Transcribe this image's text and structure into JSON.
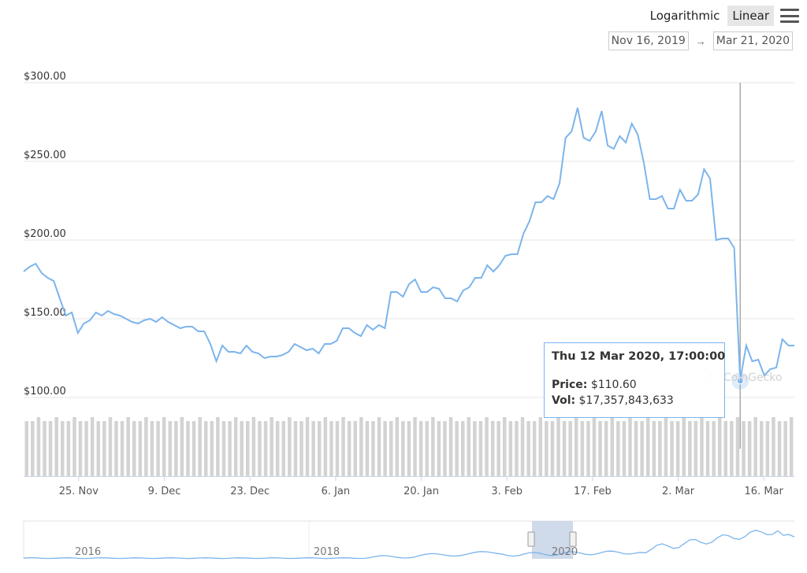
{
  "toolbar": {
    "logarithmic_label": "Logarithmic",
    "linear_label": "Linear",
    "menu_icon": "hamburger-menu-icon"
  },
  "range": {
    "from": "Nov 16, 2019",
    "arrow": "→",
    "to": "Mar 21, 2020"
  },
  "watermark": "CoinGecko",
  "tooltip": {
    "date": "Thu 12 Mar 2020, 17:00:00",
    "price_label": "Price:",
    "price_value": "$110.60",
    "vol_label": "Vol:",
    "vol_value": "$17,357,843,633"
  },
  "colors": {
    "line": "#7cb5ec",
    "volume_bar": "#d3d3d3",
    "crosshair": "#aaaaaa",
    "navigator_mask": "#c7d3e8"
  },
  "chart_data": {
    "type": "line",
    "series": [
      {
        "values": [
          180,
          183,
          185,
          179,
          176,
          174,
          163,
          152,
          154,
          141,
          147,
          149,
          154,
          152,
          155,
          153,
          152,
          150,
          148,
          147,
          149,
          150,
          148,
          151,
          148,
          146,
          144,
          145,
          145,
          142,
          142,
          134,
          123,
          133,
          129,
          129,
          128,
          133,
          129,
          128,
          125,
          126,
          126,
          127,
          129,
          134,
          132,
          130,
          131,
          128,
          134,
          134,
          136,
          144,
          144,
          141,
          139,
          146,
          143,
          146,
          144,
          167,
          167,
          164,
          172,
          175,
          167,
          167,
          170,
          169,
          163,
          163,
          161,
          168,
          170,
          176,
          176,
          184,
          180,
          184,
          190,
          191,
          191,
          204,
          212,
          224,
          224,
          228,
          226,
          236,
          265,
          269,
          284,
          265,
          263,
          269,
          282,
          260,
          258,
          266,
          262,
          274,
          267,
          249,
          226,
          226,
          228,
          220,
          220,
          232,
          225,
          225,
          229,
          245,
          239,
          200,
          201,
          201,
          195,
          111,
          133,
          123,
          124,
          114,
          118,
          119,
          137,
          133,
          133
        ]
      }
    ],
    "volume": [
      14,
      14,
      15,
      14,
      14,
      15,
      14,
      14,
      15,
      14,
      14,
      15,
      14,
      14,
      15,
      14,
      14,
      15,
      14,
      14,
      15,
      14,
      14,
      15,
      14,
      14,
      15,
      14,
      14,
      15,
      14,
      14,
      15,
      14,
      14,
      15,
      14,
      14,
      15,
      14,
      14,
      15,
      14,
      14,
      15,
      14,
      14,
      15,
      14,
      14,
      15,
      14,
      14,
      15,
      14,
      14,
      15,
      14,
      14,
      15,
      14,
      14,
      15,
      14,
      14,
      15,
      14,
      14,
      15,
      14,
      14,
      15,
      14,
      14,
      15,
      14,
      14,
      15,
      14,
      14,
      15,
      14,
      14,
      15,
      14,
      14,
      15,
      14,
      14,
      15,
      14,
      14,
      15,
      14,
      14,
      15,
      14,
      14,
      15,
      14,
      14,
      15,
      14,
      14,
      15,
      14,
      14,
      15,
      14,
      14,
      15,
      14,
      14,
      15,
      14,
      14,
      15,
      14,
      14,
      15,
      14,
      14,
      15,
      14,
      14,
      15,
      14,
      14,
      15
    ],
    "volume_note": "relative bar heights only",
    "x_start": "2019-11-16",
    "x_end": "2020-03-21",
    "xtick_labels": [
      "25. Nov",
      "9. Dec",
      "23. Dec",
      "6. Jan",
      "20. Jan",
      "3. Feb",
      "17. Feb",
      "2. Mar",
      "16. Mar"
    ],
    "ytick_labels": [
      "$100.00",
      "$150.00",
      "$200.00",
      "$250.00",
      "$300.00"
    ],
    "ylim": [
      50,
      300
    ],
    "grid": true,
    "legend": "none",
    "navigator_labels": [
      "2016",
      "2018",
      "2020"
    ],
    "highlight_point": {
      "date": "Thu 12 Mar 2020, 17:00:00",
      "price": 110.6
    }
  }
}
